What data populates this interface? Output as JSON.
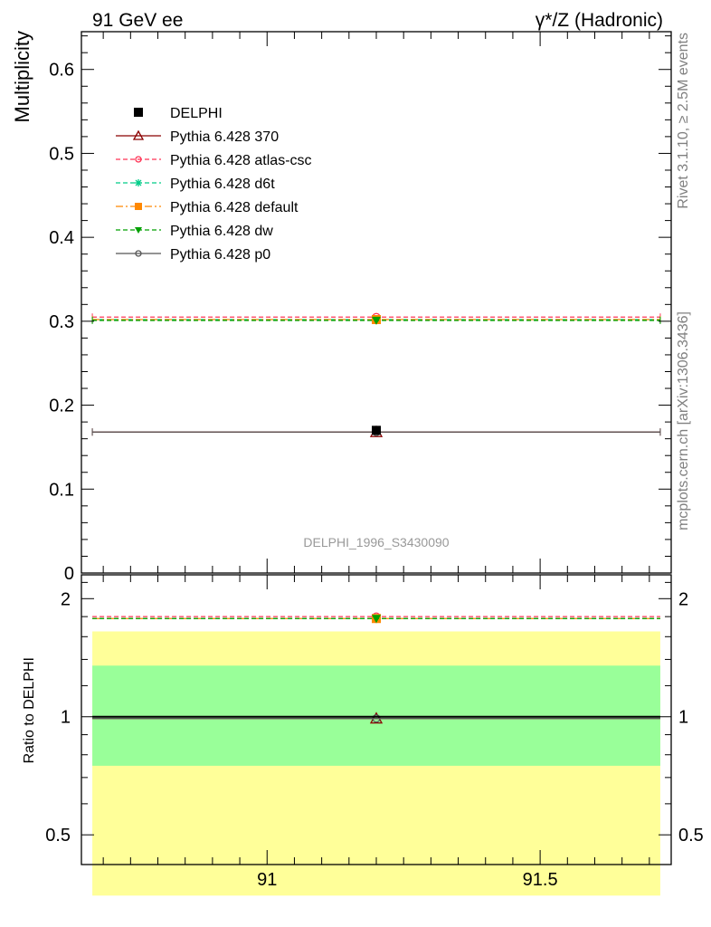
{
  "header": {
    "left": "91 GeV ee",
    "right": "γ*/Z (Hadronic)"
  },
  "side_text": {
    "rivet": "Rivet 3.1.10, ≥ 2.5M events",
    "mcplots": "mcplots.cern.ch [arXiv:1306.3436]"
  },
  "analysis_label": "DELPHI_1996_S3430090",
  "colors": {
    "data": "#000000",
    "p370": "#8b0000",
    "atlas_csc": "#ff3355",
    "d6t": "#00cc88",
    "default": "#ff8800",
    "dw": "#00a000",
    "p0": "#555555",
    "band_inner": "#99ff99",
    "band_outer": "#ffff99"
  },
  "chart_data": [
    {
      "type": "scatter",
      "panel": "main",
      "ylabel": "Multiplicity",
      "xlim": [
        90.66,
        91.74
      ],
      "ylim": [
        0,
        0.645
      ],
      "y_ticks": [
        "0",
        "0.1",
        "0.2",
        "0.3",
        "0.4",
        "0.5",
        "0.6"
      ],
      "bin": [
        90.68,
        91.72
      ],
      "x_center": 91.2,
      "legend_position": "top-left",
      "series": [
        {
          "name": "DELPHI",
          "key": "data",
          "marker": "filled-square",
          "style": "none",
          "y": 0.17,
          "yerr": 0.004
        },
        {
          "name": "Pythia 6.428 370",
          "key": "p370",
          "marker": "open-triangle",
          "style": "solid",
          "y": 0.168
        },
        {
          "name": "Pythia 6.428 atlas-csc",
          "key": "atlas_csc",
          "marker": "open-circle",
          "style": "dashed",
          "y": 0.305
        },
        {
          "name": "Pythia 6.428 d6t",
          "key": "d6t",
          "marker": "star",
          "style": "dashed",
          "y": 0.302
        },
        {
          "name": "Pythia 6.428 default",
          "key": "default",
          "marker": "filled-square",
          "style": "dashdot",
          "y": 0.302
        },
        {
          "name": "Pythia 6.428 dw",
          "key": "dw",
          "marker": "filled-triangle-down",
          "style": "dashed",
          "y": 0.301
        },
        {
          "name": "Pythia 6.428 p0",
          "key": "p0",
          "marker": "open-circle",
          "style": "solid",
          "y": 0.168
        }
      ]
    },
    {
      "type": "scatter",
      "panel": "ratio",
      "ylabel": "Ratio to DELPHI",
      "xlim": [
        90.66,
        91.74
      ],
      "ylim": [
        0.42,
        2.3
      ],
      "log_y": true,
      "y_ticks": [
        "0.5",
        "1",
        "2"
      ],
      "x_ticks": [
        "91",
        "91.5"
      ],
      "bands": {
        "inner": [
          0.75,
          1.35
        ],
        "outer": [
          0.35,
          1.65
        ]
      },
      "series": [
        {
          "key": "p370",
          "y": 0.99
        },
        {
          "key": "atlas_csc",
          "y": 1.8
        },
        {
          "key": "d6t",
          "y": 1.78
        },
        {
          "key": "default",
          "y": 1.78
        },
        {
          "key": "dw",
          "y": 1.78
        },
        {
          "key": "p0",
          "y": 0.99
        },
        {
          "key": "data",
          "y": 1.0
        }
      ]
    }
  ]
}
